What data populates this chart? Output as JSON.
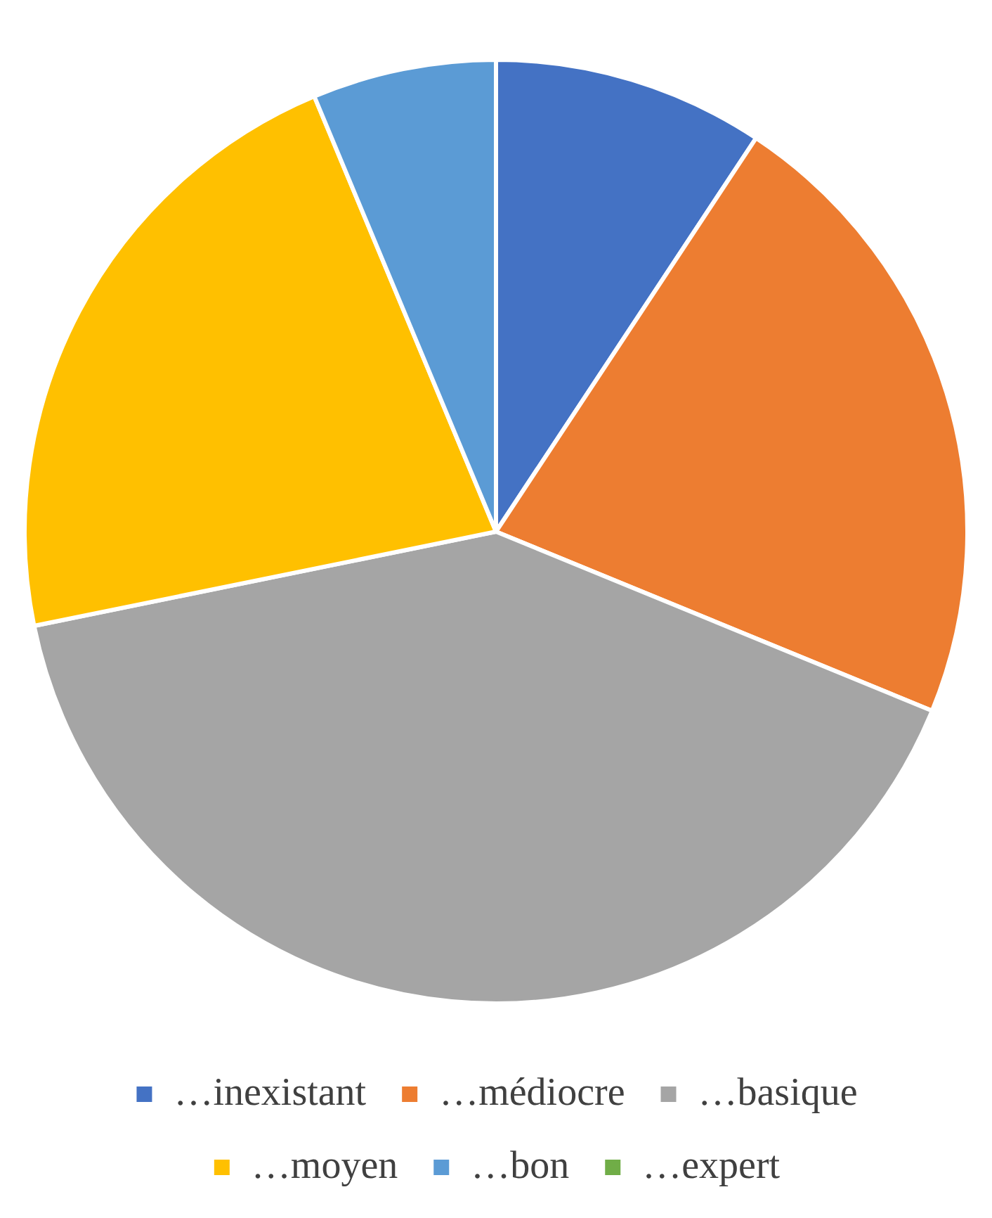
{
  "chart_data": {
    "type": "pie",
    "categories": [
      "…inexistant",
      "…médiocre",
      "…basique",
      "…moyen",
      "…bon",
      "…expert"
    ],
    "values": [
      9.3,
      21.9,
      40.6,
      21.9,
      6.3,
      0
    ],
    "colors": [
      "#4472c4",
      "#ed7d31",
      "#a5a5a5",
      "#ffc000",
      "#5b9bd5",
      "#70ad47"
    ],
    "legend": "bottom"
  }
}
